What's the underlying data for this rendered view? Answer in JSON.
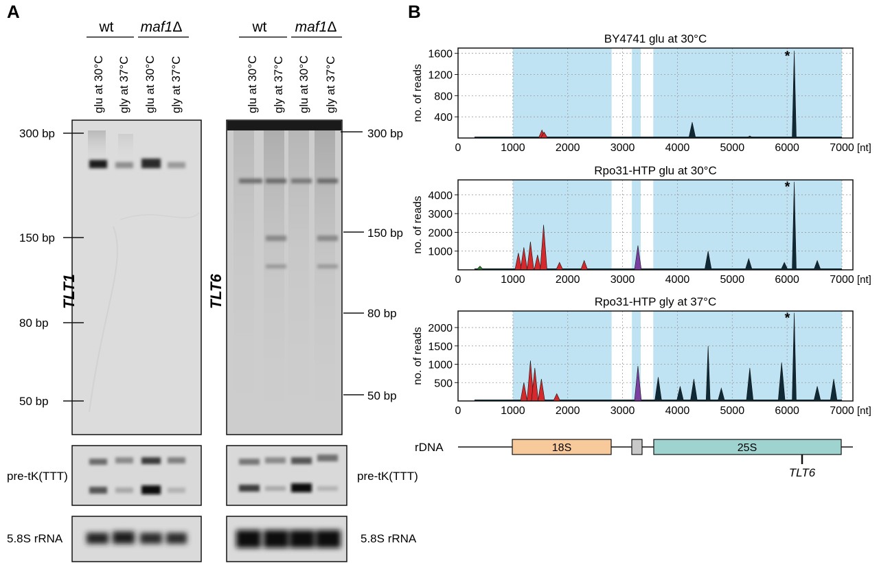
{
  "panel_a": {
    "label": "A",
    "groups": {
      "wt": "wt",
      "maf1_prefix": "maf1",
      "maf1_suffix": "Δ"
    },
    "lane_labels": [
      "glu at 30°C",
      "gly at 37°C",
      "glu at 30°C",
      "gly at 37°C"
    ],
    "gel_left": {
      "probe": "TLT1",
      "markers": [
        "300 bp",
        "150 bp",
        "80 bp",
        "50 bp"
      ],
      "pre_label": "pre-tK(TTT)",
      "rrna_label": "5.8S rRNA"
    },
    "gel_right": {
      "probe": "TLT6",
      "markers": [
        "300 bp",
        "150 bp",
        "80 bp",
        "50 bp"
      ],
      "pre_label": "pre-tK(TTT)",
      "rrna_label": "5.8S rRNA"
    }
  },
  "panel_b": {
    "label": "B",
    "x_unit": "[nt]",
    "ylabel": "no. of reads",
    "peak_marker": "*",
    "rdna_label": "rDNA",
    "rdna_18s": "18S",
    "rdna_25s": "25S",
    "tlt6_label": "TLT6",
    "colors": {
      "region": "#bfe3f2",
      "s18": "#f8c99b",
      "s25": "#9fd3cf",
      "its": "#c8c8c8",
      "red": "#d42a2e",
      "dark": "#0f2a36",
      "purple": "#7a3fa0",
      "green": "#2e7d32"
    }
  },
  "chart_data": [
    {
      "type": "area",
      "title": "BY4741 glu at 30°C",
      "xlabel": "[nt]",
      "ylabel": "no. of reads",
      "xlim": [
        0,
        7200
      ],
      "ylim": [
        0,
        1700
      ],
      "x_ticks": [
        0,
        1000,
        2000,
        3000,
        4000,
        5000,
        6000,
        7000
      ],
      "y_ticks": [
        400,
        800,
        1200,
        1600
      ],
      "grid": true,
      "peaks": [
        {
          "x": 1530,
          "y": 150,
          "color": "red"
        },
        {
          "x": 1570,
          "y": 110,
          "color": "red"
        },
        {
          "x": 4270,
          "y": 300,
          "color": "dark"
        },
        {
          "x": 5320,
          "y": 40,
          "color": "dark"
        },
        {
          "x": 6130,
          "y": 1650,
          "color": "dark"
        }
      ]
    },
    {
      "type": "area",
      "title": "Rpo31-HTP glu at 30°C",
      "xlabel": "[nt]",
      "ylabel": "no. of reads",
      "xlim": [
        0,
        7200
      ],
      "ylim": [
        0,
        4800
      ],
      "x_ticks": [
        0,
        1000,
        2000,
        3000,
        4000,
        5000,
        6000,
        7000
      ],
      "y_ticks": [
        1000,
        2000,
        3000,
        4000
      ],
      "grid": true,
      "peaks": [
        {
          "x": 400,
          "y": 200,
          "color": "green"
        },
        {
          "x": 1100,
          "y": 900,
          "color": "red"
        },
        {
          "x": 1200,
          "y": 1200,
          "color": "red"
        },
        {
          "x": 1320,
          "y": 1500,
          "color": "red"
        },
        {
          "x": 1450,
          "y": 800,
          "color": "red"
        },
        {
          "x": 1560,
          "y": 2400,
          "color": "red"
        },
        {
          "x": 1850,
          "y": 400,
          "color": "red"
        },
        {
          "x": 2300,
          "y": 500,
          "color": "red"
        },
        {
          "x": 3280,
          "y": 1300,
          "color": "purple"
        },
        {
          "x": 4560,
          "y": 1000,
          "color": "dark"
        },
        {
          "x": 5300,
          "y": 600,
          "color": "dark"
        },
        {
          "x": 6130,
          "y": 4700,
          "color": "dark"
        },
        {
          "x": 5950,
          "y": 400,
          "color": "dark"
        },
        {
          "x": 6550,
          "y": 500,
          "color": "dark"
        }
      ]
    },
    {
      "type": "area",
      "title": "Rpo31-HTP gly at 37°C",
      "xlabel": "[nt]",
      "ylabel": "no. of reads",
      "xlim": [
        0,
        7200
      ],
      "ylim": [
        0,
        2450
      ],
      "x_ticks": [
        0,
        1000,
        2000,
        3000,
        4000,
        5000,
        6000,
        7000
      ],
      "y_ticks": [
        500,
        1000,
        1500,
        2000
      ],
      "grid": true,
      "peaks": [
        {
          "x": 1200,
          "y": 500,
          "color": "red"
        },
        {
          "x": 1320,
          "y": 1100,
          "color": "red"
        },
        {
          "x": 1400,
          "y": 900,
          "color": "red"
        },
        {
          "x": 1520,
          "y": 600,
          "color": "red"
        },
        {
          "x": 1800,
          "y": 200,
          "color": "red"
        },
        {
          "x": 3280,
          "y": 950,
          "color": "purple"
        },
        {
          "x": 3650,
          "y": 650,
          "color": "dark"
        },
        {
          "x": 4050,
          "y": 400,
          "color": "dark"
        },
        {
          "x": 4300,
          "y": 600,
          "color": "dark"
        },
        {
          "x": 4560,
          "y": 1500,
          "color": "dark"
        },
        {
          "x": 4800,
          "y": 350,
          "color": "dark"
        },
        {
          "x": 5320,
          "y": 900,
          "color": "dark"
        },
        {
          "x": 5900,
          "y": 1050,
          "color": "dark"
        },
        {
          "x": 6130,
          "y": 2400,
          "color": "dark"
        },
        {
          "x": 6550,
          "y": 400,
          "color": "dark"
        },
        {
          "x": 6850,
          "y": 600,
          "color": "dark"
        }
      ]
    }
  ]
}
